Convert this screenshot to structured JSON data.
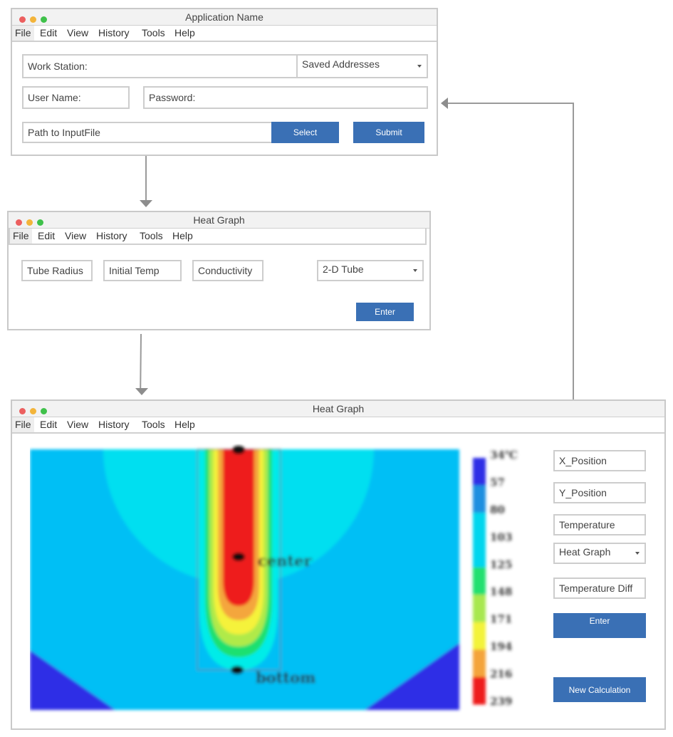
{
  "menu": [
    "File",
    "Edit",
    "View",
    "History",
    "Tools",
    "Help"
  ],
  "window1": {
    "title": "Application Name",
    "work_station_label": "Work Station:",
    "saved_addresses": "Saved Addresses",
    "user_name_label": "User Name:",
    "password_label": "Password:",
    "path_label": "Path to InputFile",
    "select_label": "Select",
    "submit_label": "Submit"
  },
  "window2": {
    "title": "Heat Graph",
    "tube_radius": "Tube Radius",
    "initial_temp": "Initial Temp",
    "conductivity": "Conductivity",
    "tube_type": "2-D Tube",
    "enter_label": "Enter"
  },
  "window3": {
    "title": "Heat Graph",
    "x_position": "X_Position",
    "y_position": "Y_Position",
    "temperature": "Temperature",
    "graph_type": "Heat Graph",
    "temperature_diff": "Temperature Diff",
    "enter_label": "Enter",
    "new_calculation_label": "New Calculation",
    "heatmap": {
      "scale_labels": [
        "34℃",
        "57",
        "80",
        "103",
        "125",
        "148",
        "171",
        "194",
        "216",
        "239"
      ],
      "scale_colors": [
        "#2f2fe6",
        "#1f8fe0",
        "#00d6ee",
        "#00d6ee",
        "#20e070",
        "#a8e850",
        "#f3f33a",
        "#f4a43a",
        "#ee1f1f"
      ],
      "center_label": "center",
      "bottom_label": "bottom"
    }
  }
}
